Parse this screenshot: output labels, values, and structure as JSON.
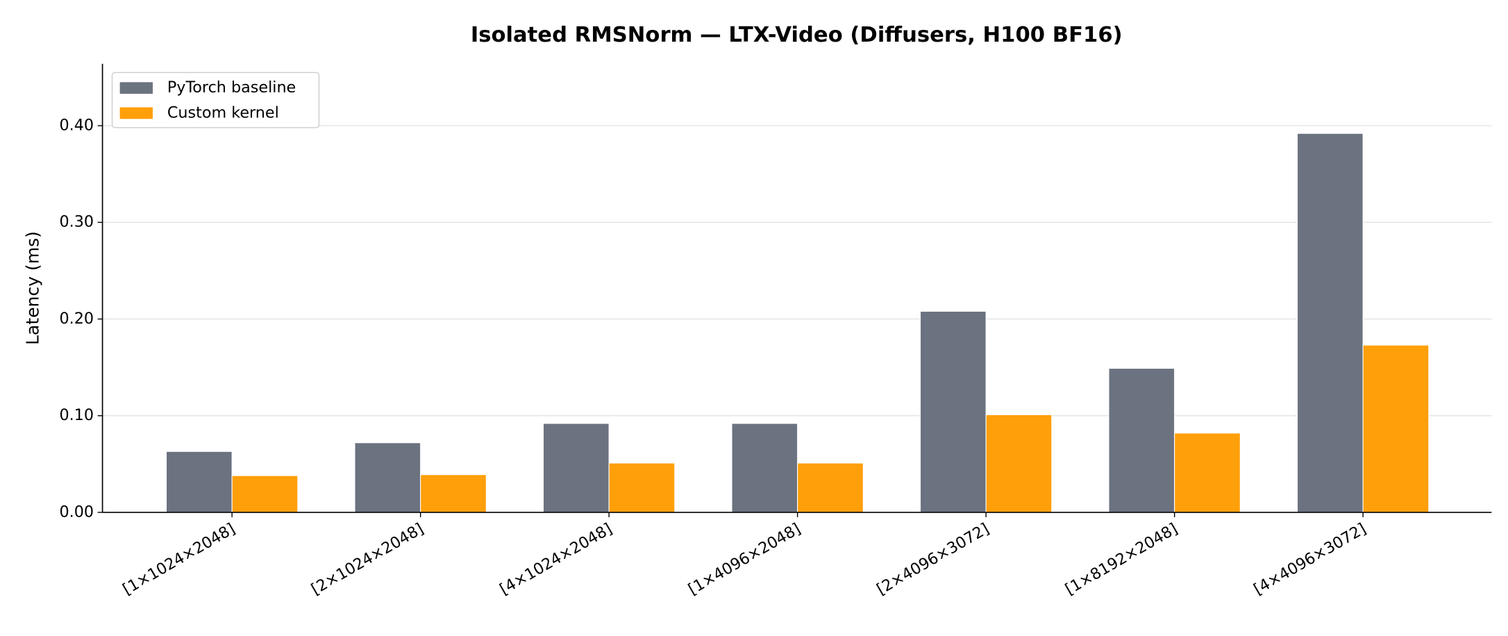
{
  "chart_data": {
    "type": "bar",
    "title": "Isolated RMSNorm — LTX-Video (Diffusers, H100 BF16)",
    "y_label": "Latency (ms)",
    "categories": [
      "[1×1024×2048]",
      "[2×1024×2048]",
      "[4×1024×2048]",
      "[1×4096×2048]",
      "[2×4096×3072]",
      "[1×8192×2048]",
      "[4×4096×3072]"
    ],
    "series": [
      {
        "name": "PyTorch baseline",
        "color": "#6b7280",
        "values": [
          0.063,
          0.072,
          0.092,
          0.092,
          0.208,
          0.149,
          0.392
        ]
      },
      {
        "name": "Custom kernel",
        "color": "#ff9f0a",
        "values": [
          0.038,
          0.039,
          0.051,
          0.051,
          0.101,
          0.082,
          0.173
        ]
      }
    ],
    "ylim": [
      0,
      0.464
    ],
    "yticks": [
      {
        "value": 0,
        "label": "0.00"
      },
      {
        "value": 0.1,
        "label": "0.10"
      },
      {
        "value": 0.2,
        "label": "0.20"
      },
      {
        "value": 0.3,
        "label": "0.30"
      },
      {
        "value": 0.4,
        "label": "0.40"
      }
    ],
    "grid": true,
    "legend": "upper left"
  }
}
